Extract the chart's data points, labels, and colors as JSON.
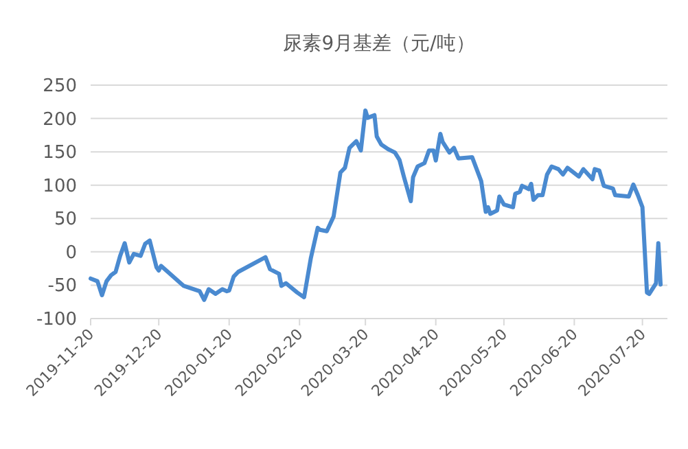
{
  "chart_data": {
    "type": "line",
    "title": "尿素9月基差（元/吨）",
    "color": "#4a8ad0",
    "grid": "y",
    "marker": "none",
    "line_style": "solid",
    "xlim": [
      "2019-11-20",
      "2020-07-31"
    ],
    "xticks": [
      "2019-11-20",
      "2019-12-20",
      "2020-01-20",
      "2020-02-20",
      "2020-03-20",
      "2020-04-20",
      "2020-05-20",
      "2020-06-20",
      "2020-07-20"
    ],
    "ylim": [
      -100,
      250
    ],
    "yticks": [
      -100,
      -50,
      0,
      50,
      100,
      150,
      200,
      250
    ],
    "x": [
      "2019-11-20",
      "2019-11-23",
      "2019-11-25",
      "2019-11-27",
      "2019-11-29",
      "2019-12-01",
      "2019-12-03",
      "2019-12-05",
      "2019-12-07",
      "2019-12-09",
      "2019-12-12",
      "2019-12-14",
      "2019-12-16",
      "2019-12-19",
      "2019-12-20",
      "2019-12-21",
      "2019-12-24",
      "2019-12-31",
      "2020-01-07",
      "2020-01-09",
      "2020-01-11",
      "2020-01-14",
      "2020-01-17",
      "2020-01-19",
      "2020-01-20",
      "2020-01-22",
      "2020-01-24",
      "2020-02-05",
      "2020-02-07",
      "2020-02-11",
      "2020-02-12",
      "2020-02-14",
      "2020-02-19",
      "2020-02-22",
      "2020-02-25",
      "2020-02-28",
      "2020-02-29",
      "2020-03-03",
      "2020-03-06",
      "2020-03-09",
      "2020-03-11",
      "2020-03-13",
      "2020-03-16",
      "2020-03-18",
      "2020-03-20",
      "2020-03-21",
      "2020-03-24",
      "2020-03-25",
      "2020-03-27",
      "2020-03-30",
      "2020-04-02",
      "2020-04-04",
      "2020-04-06",
      "2020-04-09",
      "2020-04-10",
      "2020-04-12",
      "2020-04-15",
      "2020-04-17",
      "2020-04-19",
      "2020-04-20",
      "2020-04-22",
      "2020-04-23",
      "2020-04-26",
      "2020-04-28",
      "2020-04-30",
      "2020-05-06",
      "2020-05-10",
      "2020-05-12",
      "2020-05-13",
      "2020-05-14",
      "2020-05-17",
      "2020-05-18",
      "2020-05-20",
      "2020-05-24",
      "2020-05-25",
      "2020-05-27",
      "2020-05-28",
      "2020-05-31",
      "2020-06-01",
      "2020-06-02",
      "2020-06-04",
      "2020-06-06",
      "2020-06-08",
      "2020-06-10",
      "2020-06-13",
      "2020-06-15",
      "2020-06-17",
      "2020-06-22",
      "2020-06-24",
      "2020-06-28",
      "2020-06-29",
      "2020-07-01",
      "2020-07-03",
      "2020-07-07",
      "2020-07-08",
      "2020-07-14",
      "2020-07-16",
      "2020-07-18",
      "2020-07-20",
      "2020-07-22",
      "2020-07-23",
      "2020-07-26",
      "2020-07-27",
      "2020-07-28"
    ],
    "values": [
      -40,
      -44,
      -65,
      -44,
      -35,
      -30,
      -6,
      13,
      -16,
      -3,
      -6,
      12,
      17,
      -23,
      -28,
      -21,
      -30,
      -51,
      -59,
      -72,
      -56,
      -63,
      -56,
      -59,
      -58,
      -37,
      -30,
      -8,
      -26,
      -33,
      -51,
      -47,
      -61,
      -68,
      -9,
      36,
      33,
      31,
      53,
      119,
      126,
      156,
      166,
      152,
      212,
      201,
      205,
      173,
      161,
      154,
      149,
      138,
      112,
      76,
      112,
      128,
      133,
      152,
      152,
      137,
      177,
      165,
      149,
      156,
      140,
      142,
      106,
      60,
      67,
      57,
      62,
      83,
      71,
      67,
      87,
      90,
      99,
      94,
      102,
      78,
      85,
      85,
      116,
      128,
      124,
      116,
      126,
      113,
      124,
      109,
      124,
      122,
      99,
      95,
      85,
      83,
      101,
      85,
      67,
      -61,
      -63,
      -47,
      13,
      -49
    ]
  }
}
